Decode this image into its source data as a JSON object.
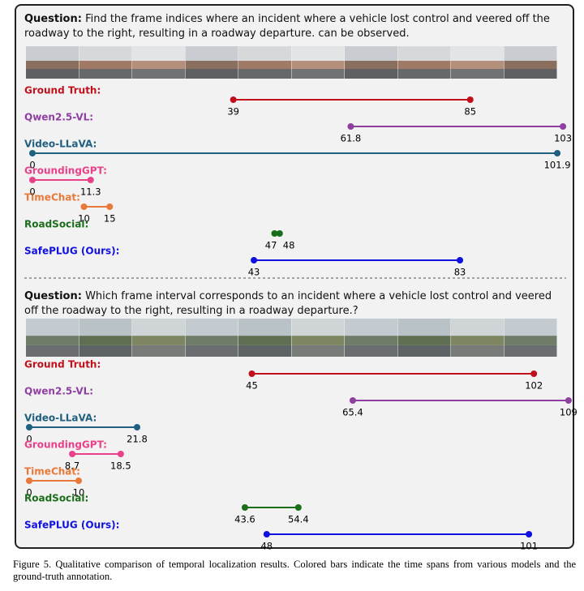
{
  "panels": [
    {
      "question_label": "Question:",
      "question": "Find the frame indices where an incident where a vehicle lost control and veered off the roadway to the right, resulting in a roadway departure. can be observed.",
      "rows": [
        {
          "name": "Ground Truth:",
          "color": "#c0101c",
          "start": 39,
          "end": 85
        },
        {
          "name": "Qwen2.5-VL:",
          "color": "#8e3fa0",
          "start": 61.8,
          "end": 103
        },
        {
          "name": "Video-LLaVA:",
          "color": "#1f5f7f",
          "start": 0,
          "end": 101.9
        },
        {
          "name": "GroundingGPT:",
          "color": "#e8418a",
          "start": 0,
          "end": 11.3
        },
        {
          "name": "TimeChat:",
          "color": "#e8793a",
          "start": 10,
          "end": 15
        },
        {
          "name": "RoadSocial:",
          "color": "#1a6e1a",
          "start": 47,
          "end": 48
        },
        {
          "name": "SafePLUG (Ours):",
          "color": "#1010e0",
          "start": 43,
          "end": 83
        }
      ]
    },
    {
      "question_label": "Question:",
      "question": "Which frame interval corresponds to an incident where a vehicle lost control and veered off the roadway to the right, resulting in a roadway departure.?",
      "rows": [
        {
          "name": "Ground Truth:",
          "color": "#c0101c",
          "start": 45,
          "end": 102
        },
        {
          "name": "Qwen2.5-VL:",
          "color": "#8e3fa0",
          "start": 65.4,
          "end": 109
        },
        {
          "name": "Video-LLaVA:",
          "color": "#1f5f7f",
          "start": 0,
          "end": 21.8
        },
        {
          "name": "GroundingGPT:",
          "color": "#e8418a",
          "start": 8.7,
          "end": 18.5
        },
        {
          "name": "TimeChat:",
          "color": "#e8793a",
          "start": 0,
          "end": 10
        },
        {
          "name": "RoadSocial:",
          "color": "#1a6e1a",
          "start": 43.6,
          "end": 54.4
        },
        {
          "name": "SafePLUG (Ours):",
          "color": "#1010e0",
          "start": 48,
          "end": 101
        }
      ]
    }
  ],
  "caption": "Figure 5.  Qualitative comparison of temporal localization results.  Colored bars indicate the time spans from various models and the ground-truth annotation."
}
